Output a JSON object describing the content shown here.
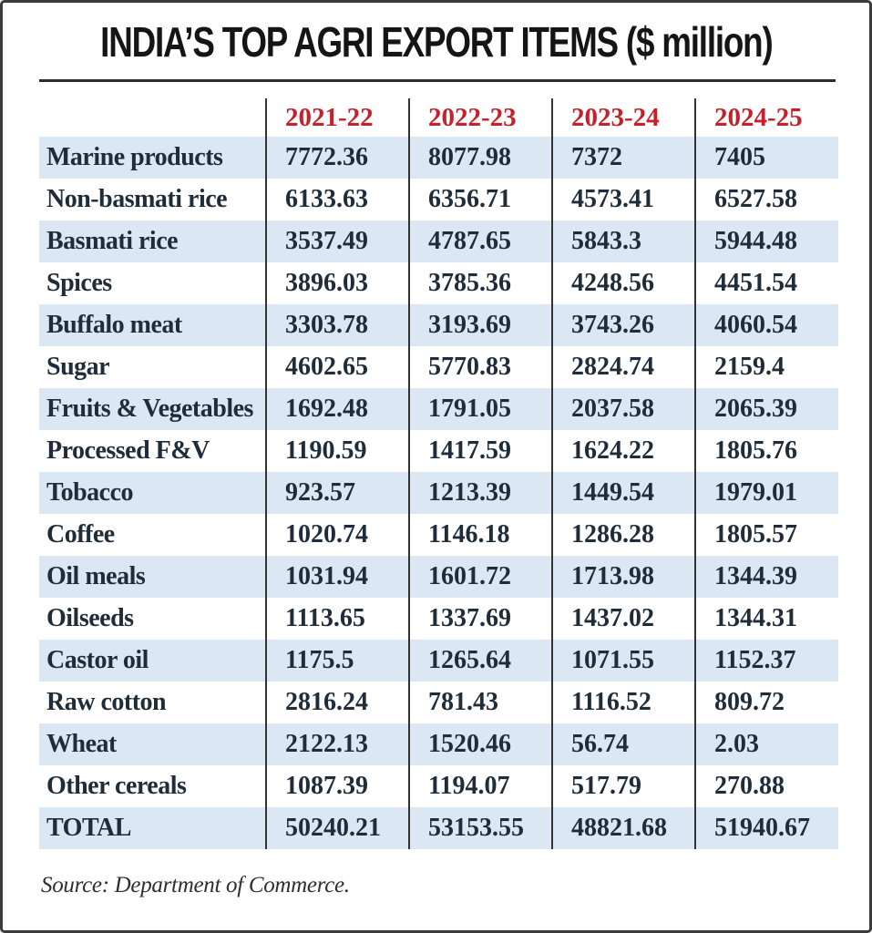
{
  "title": "INDIA’S TOP AGRI EXPORT ITEMS ($ million)",
  "source": "Source: Department of Commerce.",
  "colors": {
    "header_red": "#c5212b",
    "stripe_blue": "#dbe7f3",
    "text_navy": "#1f2c3a",
    "divider_dark": "#333333"
  },
  "chart_data": {
    "type": "table",
    "title": "INDIA’S TOP AGRI EXPORT ITEMS ($ million)",
    "columns": [
      "2021-22",
      "2022-23",
      "2023-24",
      "2024-25"
    ],
    "rows": [
      {
        "item": "Marine products",
        "values": [
          "7772.36",
          "8077.98",
          "7372",
          "7405"
        ]
      },
      {
        "item": "Non-basmati rice",
        "values": [
          "6133.63",
          "6356.71",
          "4573.41",
          "6527.58"
        ]
      },
      {
        "item": "Basmati rice",
        "values": [
          "3537.49",
          "4787.65",
          "5843.3",
          "5944.48"
        ]
      },
      {
        "item": "Spices",
        "values": [
          "3896.03",
          "3785.36",
          "4248.56",
          "4451.54"
        ]
      },
      {
        "item": "Buffalo meat",
        "values": [
          "3303.78",
          "3193.69",
          "3743.26",
          "4060.54"
        ]
      },
      {
        "item": "Sugar",
        "values": [
          "4602.65",
          "5770.83",
          "2824.74",
          "2159.4"
        ]
      },
      {
        "item": "Fruits & Vegetables",
        "values": [
          "1692.48",
          "1791.05",
          "2037.58",
          "2065.39"
        ]
      },
      {
        "item": "Processed F&V",
        "values": [
          "1190.59",
          "1417.59",
          "1624.22",
          "1805.76"
        ]
      },
      {
        "item": "Tobacco",
        "values": [
          "923.57",
          "1213.39",
          "1449.54",
          "1979.01"
        ]
      },
      {
        "item": "Coffee",
        "values": [
          "1020.74",
          "1146.18",
          "1286.28",
          "1805.57"
        ]
      },
      {
        "item": "Oil meals",
        "values": [
          "1031.94",
          "1601.72",
          "1713.98",
          "1344.39"
        ]
      },
      {
        "item": "Oilseeds",
        "values": [
          "1113.65",
          "1337.69",
          "1437.02",
          "1344.31"
        ]
      },
      {
        "item": "Castor oil",
        "values": [
          "1175.5",
          "1265.64",
          "1071.55",
          "1152.37"
        ]
      },
      {
        "item": "Raw cotton",
        "values": [
          "2816.24",
          "781.43",
          "1116.52",
          "809.72"
        ]
      },
      {
        "item": "Wheat",
        "values": [
          "2122.13",
          "1520.46",
          "56.74",
          "2.03"
        ]
      },
      {
        "item": "Other cereals",
        "values": [
          "1087.39",
          "1194.07",
          "517.79",
          "270.88"
        ]
      },
      {
        "item": "TOTAL",
        "values": [
          "50240.21",
          "53153.55",
          "48821.68",
          "51940.67"
        ]
      }
    ]
  }
}
